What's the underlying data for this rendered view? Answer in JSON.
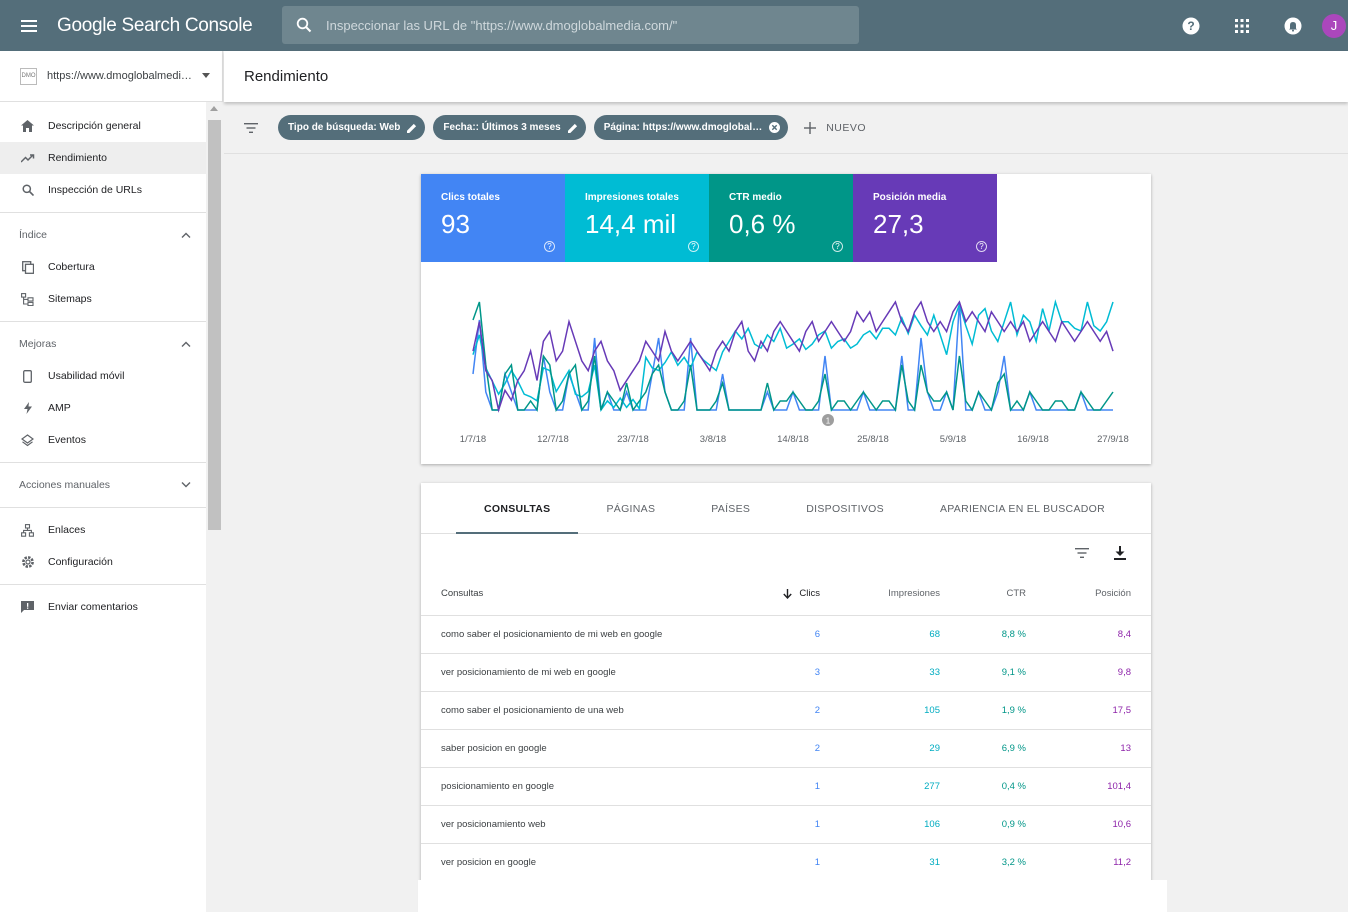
{
  "topbar": {
    "logo": "Google Search Console",
    "search_placeholder": "Inspeccionar las URL de \"https://www.dmoglobalmedia.com/\"",
    "avatar_letter": "J"
  },
  "sidebar": {
    "property": "https://www.dmoglobalmedi…",
    "property_icon_text": "DMO",
    "items_top": [
      {
        "label": "Descripción general",
        "icon": "home-icon"
      },
      {
        "label": "Rendimiento",
        "icon": "trending-up-icon",
        "active": true
      },
      {
        "label": "Inspección de URLs",
        "icon": "search-icon"
      }
    ],
    "section_index": "Índice",
    "items_index": [
      {
        "label": "Cobertura",
        "icon": "copy-icon"
      },
      {
        "label": "Sitemaps",
        "icon": "sitemap-icon"
      }
    ],
    "section_improvements": "Mejoras",
    "items_improvements": [
      {
        "label": "Usabilidad móvil",
        "icon": "phone-icon"
      },
      {
        "label": "AMP",
        "icon": "bolt-icon"
      },
      {
        "label": "Eventos",
        "icon": "layers-icon"
      }
    ],
    "section_manual": "Acciones manuales",
    "items_bottom": [
      {
        "label": "Enlaces",
        "icon": "links-icon"
      },
      {
        "label": "Configuración",
        "icon": "gear-icon"
      }
    ],
    "feedback": "Enviar comentarios"
  },
  "page": {
    "title": "Rendimiento",
    "filters": [
      {
        "label": "Tipo de búsqueda: Web",
        "action": "edit"
      },
      {
        "label": "Fecha:: Últimos 3 meses",
        "action": "edit"
      },
      {
        "label": "Página: https://www.dmoglobal…",
        "action": "remove"
      }
    ],
    "new_filter": "NUEVO"
  },
  "metrics": [
    {
      "label": "Clics totales",
      "value": "93",
      "color": "#4285f4"
    },
    {
      "label": "Impresiones totales",
      "value": "14,4 mil",
      "color": "#00bcd4"
    },
    {
      "label": "CTR medio",
      "value": "0,6 %",
      "color": "#009688"
    },
    {
      "label": "Posición media",
      "value": "27,3",
      "color": "#673ab7"
    }
  ],
  "chart_data": {
    "type": "line",
    "x_tick_labels": [
      "1/7/18",
      "12/7/18",
      "23/7/18",
      "3/8/18",
      "14/8/18",
      "25/8/18",
      "5/9/18",
      "16/9/18",
      "27/9/18"
    ],
    "annotation": "1",
    "series": [
      {
        "name": "Clics totales",
        "color": "#4285f4",
        "values": [
          2,
          5,
          1,
          0,
          0,
          2,
          1,
          0,
          0,
          0,
          0,
          3,
          1,
          0,
          0,
          2,
          1,
          0,
          0,
          4,
          0,
          1,
          0,
          0,
          1,
          0,
          0,
          0,
          2,
          4,
          1,
          0,
          0,
          0,
          4,
          0,
          0,
          0,
          0,
          2,
          0,
          0,
          0,
          0,
          0,
          0,
          1,
          0,
          0,
          0,
          1,
          0,
          0,
          0,
          0,
          3,
          0,
          0,
          0,
          0,
          0,
          1,
          0,
          0,
          0,
          0,
          0,
          3,
          0,
          0,
          4,
          1,
          0,
          0,
          1,
          0,
          6,
          0,
          0,
          1,
          0,
          0,
          1,
          3,
          0,
          0,
          0,
          1,
          0,
          0,
          0,
          0,
          0,
          0,
          0,
          1,
          0,
          0,
          0,
          0,
          0
        ]
      },
      {
        "name": "Impresiones totales",
        "color": "#00bcd4",
        "values": [
          160,
          175,
          150,
          140,
          130,
          138,
          148,
          140,
          130,
          128,
          125,
          150,
          148,
          132,
          140,
          148,
          130,
          128,
          132,
          152,
          118,
          125,
          120,
          127,
          120,
          126,
          119,
          158,
          150,
          148,
          154,
          162,
          152,
          158,
          150,
          162,
          156,
          152,
          148,
          162,
          170,
          178,
          172,
          180,
          168,
          165,
          175,
          170,
          180,
          165,
          168,
          172,
          164,
          168,
          175,
          178,
          165,
          170,
          172,
          165,
          168,
          175,
          178,
          172,
          180,
          180,
          175,
          188,
          176,
          190,
          182,
          175,
          190,
          175,
          160,
          185,
          198,
          182,
          168,
          190,
          195,
          178,
          170,
          185,
          200,
          175,
          190,
          185,
          170,
          195,
          178,
          200,
          185,
          185,
          180,
          178,
          200,
          182,
          178,
          185,
          200
        ]
      },
      {
        "name": "CTR medio",
        "color": "#009688",
        "values": [
          10,
          12,
          5,
          0,
          0,
          4,
          5,
          0,
          0,
          1,
          0,
          6,
          5,
          0,
          1,
          4,
          5,
          0,
          1,
          6,
          0,
          2,
          1,
          0,
          3,
          0,
          1,
          2,
          4,
          5,
          2,
          0,
          0,
          1,
          5,
          0,
          0,
          0,
          1,
          3,
          0,
          0,
          0,
          0,
          0,
          0,
          3,
          0,
          1,
          1,
          2,
          1,
          0,
          0,
          1,
          4,
          0,
          1,
          1,
          0,
          1,
          2,
          1,
          0,
          1,
          1,
          0,
          5,
          1,
          0,
          5,
          2,
          1,
          1,
          2,
          0,
          6,
          1,
          0,
          2,
          1,
          0,
          3,
          4,
          0,
          1,
          0,
          2,
          1,
          0,
          0,
          1,
          1,
          0,
          0,
          2,
          1,
          0,
          0,
          1,
          2
        ]
      },
      {
        "name": "Posición media",
        "color": "#673ab7",
        "values": [
          30,
          33,
          28,
          27,
          24,
          26,
          25,
          27,
          28,
          30,
          27,
          31,
          32,
          29,
          30,
          33,
          31,
          29,
          28,
          30,
          31,
          29,
          28,
          26,
          27,
          28,
          29,
          31,
          30,
          29,
          32,
          30,
          29,
          30,
          31,
          30,
          29,
          28,
          30,
          31,
          30,
          32,
          33,
          30,
          29,
          31,
          30,
          32,
          33,
          32,
          31,
          30,
          32,
          33,
          31,
          32,
          33,
          32,
          31,
          32,
          34,
          33,
          34,
          32,
          33,
          34,
          35,
          33,
          32,
          34,
          35,
          33,
          32,
          33,
          32,
          34,
          35,
          33,
          34,
          33,
          32,
          34,
          33,
          32,
          33,
          32,
          33,
          31,
          32,
          33,
          32,
          31,
          33,
          32,
          31,
          32,
          33,
          32,
          31,
          32,
          30
        ]
      }
    ]
  },
  "table": {
    "tabs": [
      "CONSULTAS",
      "PÁGINAS",
      "PAÍSES",
      "DISPOSITIVOS",
      "APARIENCIA EN EL BUSCADOR"
    ],
    "headers": {
      "query": "Consultas",
      "clicks": "Clics",
      "impressions": "Impresiones",
      "ctr": "CTR",
      "position": "Posición"
    },
    "rows": [
      {
        "query": "como saber el posicionamiento de mi web en google",
        "clicks": "6",
        "impressions": "68",
        "ctr": "8,8 %",
        "position": "8,4"
      },
      {
        "query": "ver posicionamiento de mi web en google",
        "clicks": "3",
        "impressions": "33",
        "ctr": "9,1 %",
        "position": "9,8"
      },
      {
        "query": "como saber el posicionamiento de una web",
        "clicks": "2",
        "impressions": "105",
        "ctr": "1,9 %",
        "position": "17,5"
      },
      {
        "query": "saber posicion en google",
        "clicks": "2",
        "impressions": "29",
        "ctr": "6,9 %",
        "position": "13"
      },
      {
        "query": "posicionamiento en google",
        "clicks": "1",
        "impressions": "277",
        "ctr": "0,4 %",
        "position": "101,4"
      },
      {
        "query": "ver posicionamiento web",
        "clicks": "1",
        "impressions": "106",
        "ctr": "0,9 %",
        "position": "10,6"
      },
      {
        "query": "ver posicion en google",
        "clicks": "1",
        "impressions": "31",
        "ctr": "3,2 %",
        "position": "11,2"
      }
    ]
  }
}
